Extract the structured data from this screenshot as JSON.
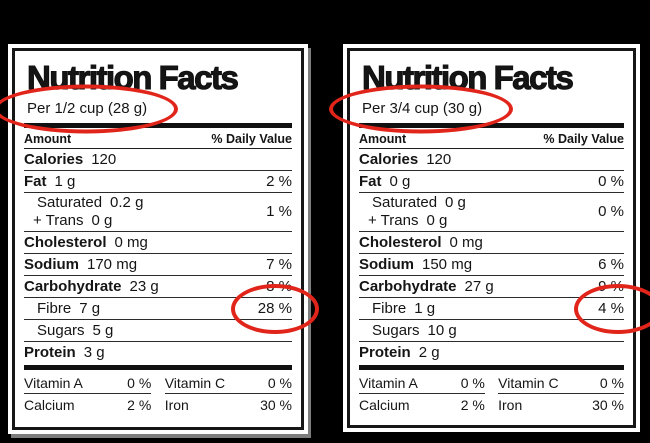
{
  "colors": {
    "background": "#000000",
    "label_background": "#ffffff",
    "text": "#151515",
    "annotation_red": "#e1251b"
  },
  "labels": [
    {
      "title": "Nutrition Facts",
      "serving": "Per 1/2 cup (28 g)",
      "columns": {
        "amount": "Amount",
        "daily_value": "% Daily Value"
      },
      "rows": {
        "calories": {
          "name": "Calories",
          "value": "120",
          "dv": ""
        },
        "fat": {
          "name": "Fat",
          "value": "1 g",
          "dv": "2 %"
        },
        "saturated": {
          "name": "Saturated",
          "value": "0.2 g"
        },
        "trans": {
          "name": "+ Trans",
          "value": "0 g"
        },
        "sat_trans_dv": "1 %",
        "cholesterol": {
          "name": "Cholesterol",
          "value": "0 mg",
          "dv": ""
        },
        "sodium": {
          "name": "Sodium",
          "value": "170 mg",
          "dv": "7 %"
        },
        "carbohydrate": {
          "name": "Carbohydrate",
          "value": "23 g",
          "dv": "8 %"
        },
        "fibre": {
          "name": "Fibre",
          "value": "7 g",
          "dv": "28 %",
          "circled": true
        },
        "sugars": {
          "name": "Sugars",
          "value": "5 g",
          "dv": ""
        },
        "protein": {
          "name": "Protein",
          "value": "3 g",
          "dv": ""
        }
      },
      "micronutrients": {
        "vitamin_a": {
          "name": "Vitamin A",
          "dv": "0 %"
        },
        "vitamin_c": {
          "name": "Vitamin C",
          "dv": "0 %"
        },
        "calcium": {
          "name": "Calcium",
          "dv": "2 %"
        },
        "iron": {
          "name": "Iron",
          "dv": "30 %"
        }
      },
      "annotations": [
        "serving circled in red",
        "fibre daily value 28 % circled in red"
      ]
    },
    {
      "title": "Nutrition Facts",
      "serving": "Per 3/4 cup (30 g)",
      "columns": {
        "amount": "Amount",
        "daily_value": "% Daily Value"
      },
      "rows": {
        "calories": {
          "name": "Calories",
          "value": "120",
          "dv": ""
        },
        "fat": {
          "name": "Fat",
          "value": "0 g",
          "dv": "0 %"
        },
        "saturated": {
          "name": "Saturated",
          "value": "0 g"
        },
        "trans": {
          "name": "+ Trans",
          "value": "0 g"
        },
        "sat_trans_dv": "0 %",
        "cholesterol": {
          "name": "Cholesterol",
          "value": "0 mg",
          "dv": ""
        },
        "sodium": {
          "name": "Sodium",
          "value": "150 mg",
          "dv": "6 %"
        },
        "carbohydrate": {
          "name": "Carbohydrate",
          "value": "27 g",
          "dv": "9 %"
        },
        "fibre": {
          "name": "Fibre",
          "value": "1 g",
          "dv": "4 %",
          "circled": true
        },
        "sugars": {
          "name": "Sugars",
          "value": "10 g",
          "dv": ""
        },
        "protein": {
          "name": "Protein",
          "value": "2 g",
          "dv": ""
        }
      },
      "micronutrients": {
        "vitamin_a": {
          "name": "Vitamin A",
          "dv": "0 %"
        },
        "vitamin_c": {
          "name": "Vitamin C",
          "dv": "0 %"
        },
        "calcium": {
          "name": "Calcium",
          "dv": "2 %"
        },
        "iron": {
          "name": "Iron",
          "dv": "30 %"
        }
      },
      "annotations": [
        "serving circled in red",
        "fibre daily value 4 % circled in red"
      ]
    }
  ]
}
